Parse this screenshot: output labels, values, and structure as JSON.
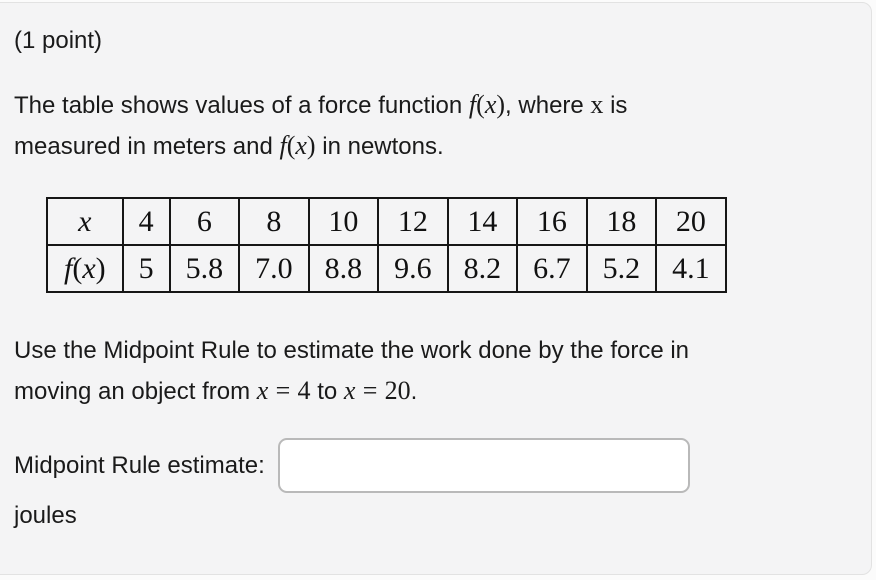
{
  "page": {
    "points_label": "(1 point)",
    "card_bg": "#f4f4f5",
    "text_color": "#1a1a1a"
  },
  "problem": {
    "para1": {
      "line1_a": "The table shows values of a force function ",
      "line1_b": ", where ",
      "line1_c": " is",
      "line2_a": "measured in meters and ",
      "line2_b": " in newtons."
    },
    "para2": {
      "line1": "Use the Midpoint Rule to estimate the work done by the force in",
      "line2_a": "moving an object from ",
      "line2_b": " to ",
      "line2_c": "."
    },
    "math": {
      "f": "f",
      "lp": "(",
      "rp": ")",
      "x": "x",
      "eq": "=",
      "lower_bound": "4",
      "upper_bound": "20"
    }
  },
  "table": {
    "x_values": [
      "4",
      "6",
      "8",
      "10",
      "12",
      "14",
      "16",
      "18",
      "20"
    ],
    "fx_values": [
      "5",
      "5.8",
      "7.0",
      "8.8",
      "9.6",
      "8.2",
      "6.7",
      "5.2",
      "4.1"
    ]
  },
  "answer": {
    "label": "Midpoint Rule estimate:",
    "input_value": "",
    "unit": "joules"
  }
}
